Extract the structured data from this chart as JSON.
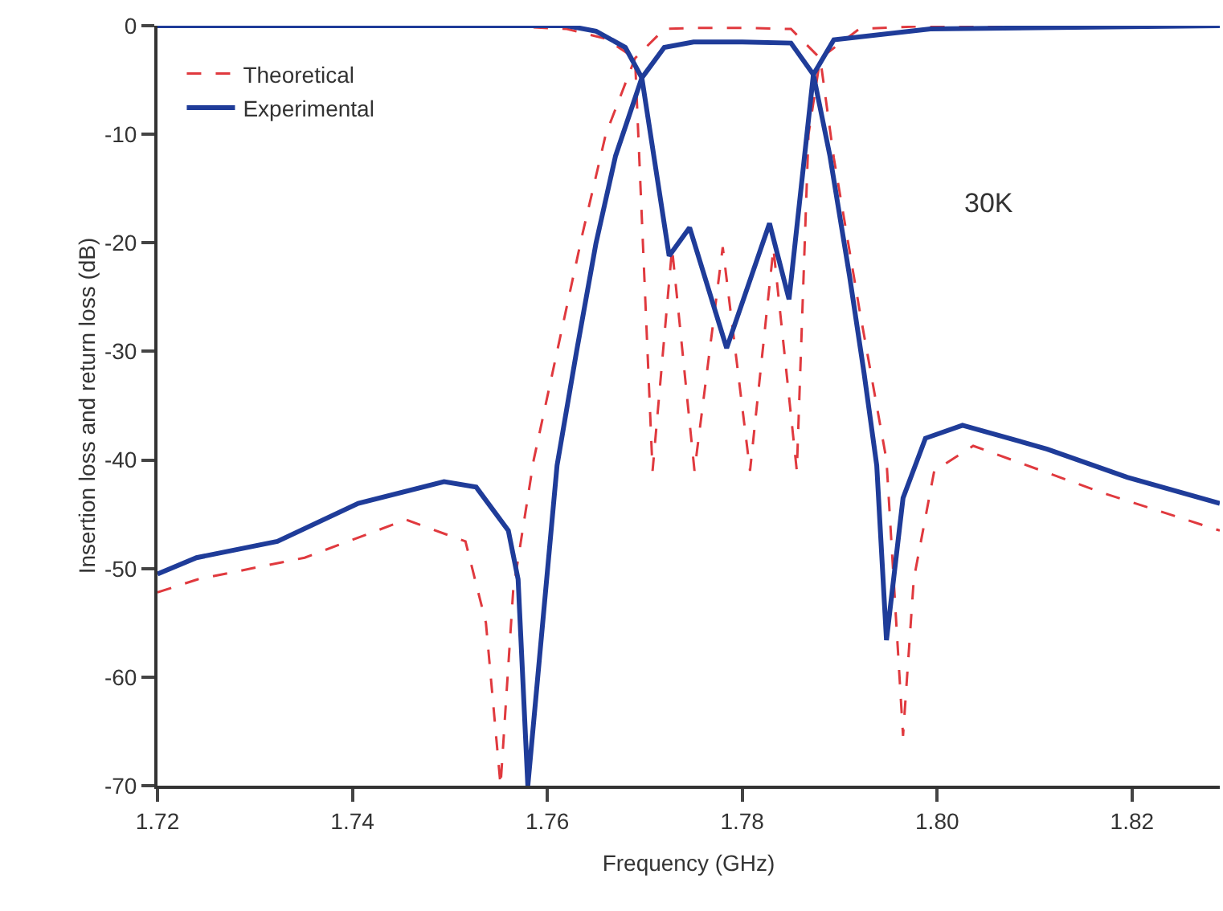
{
  "chart_data": {
    "type": "line",
    "xlabel": "Frequency (GHz)",
    "ylabel": "Insertion loss and return loss (dB)",
    "annotations": [
      "30K"
    ],
    "xlim": [
      1.72,
      1.829
    ],
    "ylim": [
      -70,
      0
    ],
    "xticks": [
      1.72,
      1.74,
      1.76,
      1.78,
      {
        "value": 1.8,
        "label": "1.80"
      },
      1.82
    ],
    "yticks": [
      -70,
      -60,
      -50,
      -40,
      -30,
      -20,
      -10,
      0
    ],
    "grid": false,
    "legend": "top left",
    "marker": "none",
    "series": [
      {
        "name": "Theoretical",
        "color": "#e0393e",
        "line_style": "dashed",
        "x": [
          1.72,
          1.7241,
          1.7351,
          1.7455,
          1.7516,
          1.7537,
          1.7552,
          1.7565,
          1.7586,
          1.7636,
          1.766,
          1.769,
          1.772,
          1.775,
          1.78,
          1.785,
          1.788,
          1.7894,
          1.792,
          1.7948,
          1.7965,
          1.7976,
          1.7997,
          1.8037,
          1.8169,
          1.829
        ],
        "values": [
          -52.2,
          -51,
          -49,
          -45.5,
          -47.5,
          -55,
          -70,
          -52,
          -40,
          -19.2,
          -10,
          -3,
          -0.3,
          -0.2,
          -0.2,
          -0.3,
          -3,
          -12.2,
          -26,
          -40,
          -65.4,
          -51,
          -41,
          -38.7,
          -43,
          -46.5
        ]
      },
      {
        "color": "#e0393e",
        "line_style": "dashed",
        "x": [
          1.72,
          1.755,
          1.762,
          1.766,
          1.769,
          1.7708,
          1.7728,
          1.7751,
          1.778,
          1.7808,
          1.7832,
          1.7856,
          1.7868,
          1.788,
          1.792,
          1.8,
          1.829
        ],
        "values": [
          0,
          0,
          -0.3,
          -1.2,
          -3,
          -41,
          -20.5,
          -41,
          -20.4,
          -41,
          -20.5,
          -41,
          -10,
          -3,
          -0.3,
          0,
          0
        ]
      },
      {
        "name": "Experimental",
        "color": "#1f3c99",
        "line_style": "solid",
        "x": [
          1.72,
          1.724,
          1.7323,
          1.7406,
          1.7494,
          1.7527,
          1.756,
          1.757,
          1.758,
          1.761,
          1.763,
          1.765,
          1.767,
          1.7697,
          1.772,
          1.775,
          1.78,
          1.785,
          1.7873,
          1.789,
          1.791,
          1.7925,
          1.7938,
          1.7948,
          1.7965,
          1.7988,
          1.8026,
          1.8113,
          1.8195,
          1.829
        ],
        "values": [
          -50.5,
          -49,
          -47.5,
          -44,
          -42,
          -42.5,
          -46.5,
          -51,
          -70,
          -40.5,
          -30,
          -20,
          -12,
          -4.8,
          -2,
          -1.5,
          -1.5,
          -1.6,
          -4.5,
          -12,
          -23,
          -32,
          -40.5,
          -56.6,
          -43.5,
          -38,
          -36.8,
          -39,
          -41.6,
          -44
        ]
      },
      {
        "color": "#1f3c99",
        "line_style": "solid",
        "x": [
          1.72,
          1.762,
          1.765,
          1.768,
          1.7697,
          1.7725,
          1.7746,
          1.7784,
          1.7828,
          1.7848,
          1.7873,
          1.7894,
          1.7993,
          1.829
        ],
        "values": [
          0,
          0,
          -0.5,
          -2,
          -4.8,
          -21.2,
          -18.6,
          -29.7,
          -18.2,
          -25.2,
          -4.5,
          -1.3,
          -0.3,
          0
        ]
      }
    ]
  }
}
